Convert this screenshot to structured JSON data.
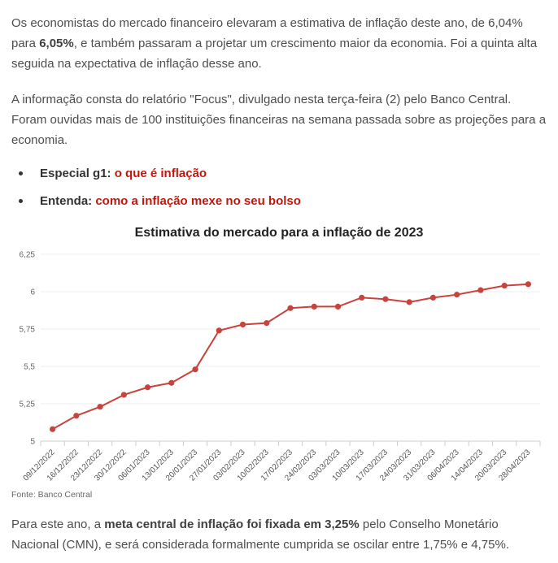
{
  "article": {
    "p1": {
      "before": "Os economistas do mercado financeiro elevaram a estimativa de inflação deste ano, de 6,04% para ",
      "bold": "6,05%",
      "after": ", e também passaram a projetar um crescimento maior da economia. Foi a quinta alta seguida na expectativa de inflação desse ano."
    },
    "p2": "A informação consta do relatório \"Focus\", divulgado nesta terça-feira (2) pelo Banco Central. Foram ouvidas mais de 100 instituições financeiras na semana passada sobre as projeções para a economia.",
    "bullets": [
      {
        "label": "Especial g1: ",
        "link": "o que é inflação"
      },
      {
        "label": "Entenda: ",
        "link": "como a inflação mexe no seu bolso"
      }
    ],
    "p3": {
      "before": "Para este ano, a ",
      "bold": "meta central de inflação foi fixada em 3,25%",
      "after": " pelo Conselho Monetário Nacional (CMN), e será considerada formalmente cumprida se oscilar entre 1,75% e 4,75%."
    }
  },
  "chart": {
    "title": "Estimativa do mercado para a inflação de 2023",
    "source": "Fonte: Banco Central"
  },
  "chart_data": {
    "type": "line",
    "title": "Estimativa do mercado para a inflação de 2023",
    "categories": [
      "09/12/2022",
      "16/12/2022",
      "23/12/2022",
      "30/12/2022",
      "06/01/2023",
      "13/01/2023",
      "20/01/2023",
      "27/01/2023",
      "03/02/2023",
      "10/02/2023",
      "17/02/2023",
      "24/02/2023",
      "03/03/2023",
      "10/03/2023",
      "17/03/2023",
      "24/03/2023",
      "31/03/2023",
      "06/04/2023",
      "14/04/2023",
      "20/03/2023",
      "28/04/2023"
    ],
    "values": [
      5.08,
      5.17,
      5.23,
      5.31,
      5.36,
      5.39,
      5.48,
      5.74,
      5.78,
      5.79,
      5.89,
      5.9,
      5.9,
      5.96,
      5.95,
      5.93,
      5.96,
      5.98,
      6.01,
      6.04,
      6.05
    ],
    "ylim": [
      5,
      6.25
    ],
    "y_ticks": [
      5,
      5.25,
      5.5,
      5.75,
      6,
      6.25
    ],
    "y_tick_labels": [
      "5",
      "5,25",
      "5,5",
      "5,75",
      "6",
      "6,25"
    ],
    "xlabel": "",
    "ylabel": "",
    "grid": true,
    "legend": "none",
    "line_color": "#c8433c",
    "source": "Fonte: Banco Central"
  },
  "colors": {
    "body_text": "#4d4d4d",
    "link_red": "#c4170c",
    "line_red": "#c8433c",
    "grid_gray": "#ececec",
    "axis_gray": "#cccccc"
  }
}
